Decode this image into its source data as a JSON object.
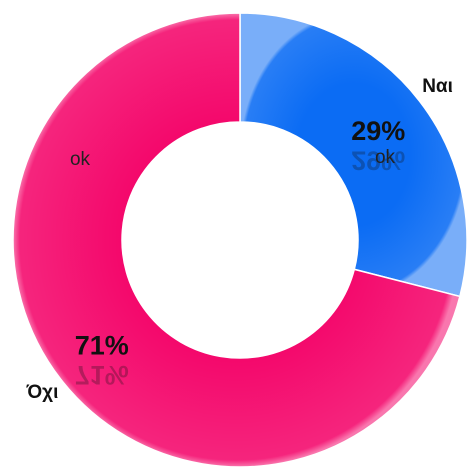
{
  "chart_data": {
    "type": "pie",
    "donut": true,
    "categories": [
      "Ναι",
      "Όχι"
    ],
    "values": [
      29,
      71
    ],
    "value_labels": [
      "29%",
      "71%"
    ],
    "colors": [
      "#0b6cf4",
      "#f4076b"
    ],
    "annotations": [
      "ok",
      "ok"
    ]
  }
}
